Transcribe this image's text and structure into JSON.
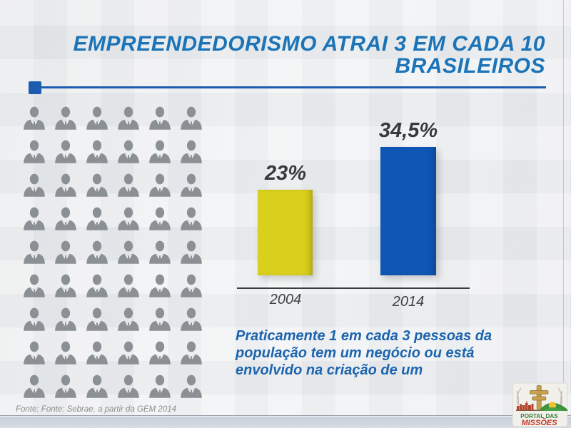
{
  "slide": {
    "title_line1": "EMPREENDEDORISMO ATRAI 3 EM CADA 10",
    "title_line2": "BRASILEIROS",
    "title_color": "#1b74b8",
    "accent_color": "#1c5cae"
  },
  "icon_grid": {
    "icon": "businessman-icon",
    "columns": 6,
    "rows": 9,
    "count": 54,
    "color": "#8b9095"
  },
  "chart_data": {
    "type": "bar",
    "categories": [
      "2004",
      "2014"
    ],
    "values": [
      23,
      34.5
    ],
    "value_labels": [
      "23%",
      "34,5%"
    ],
    "bar_colors": [
      "#d9cf1d",
      "#0f57b5"
    ],
    "title": "",
    "xlabel": "",
    "ylabel": "",
    "ylim": [
      0,
      40
    ],
    "grid": false,
    "legend": false,
    "value_label_color": "#38393b",
    "tick_label_color": "#3f4146"
  },
  "caption": {
    "line1": "Praticamente 1 em cada 3 pessoas da",
    "line2": "população tem um negócio ou está",
    "line3": "envolvido na criação de um",
    "color": "#1c64ae"
  },
  "footer": {
    "source": "Fonte: Fonte: Sebrae, a partir da GEM 2014"
  },
  "logo": {
    "line1": "PORTAL DAS",
    "line2": "MISSÕES",
    "line1_color": "#3a7d3a",
    "line2_color": "#c0392b"
  }
}
